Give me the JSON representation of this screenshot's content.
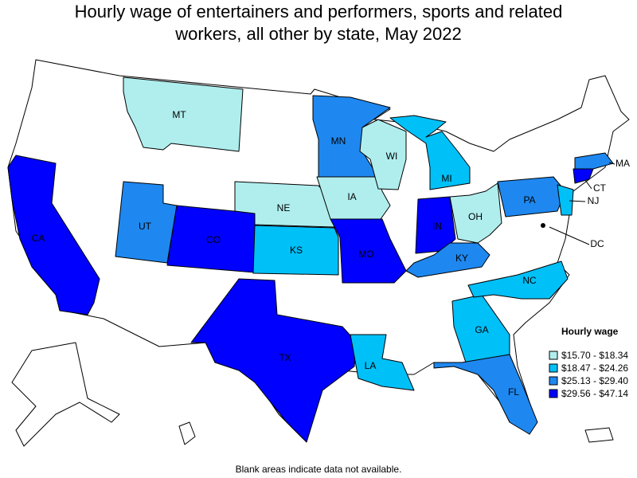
{
  "title": [
    "Hourly wage of entertainers and performers, sports and related",
    "workers, all other by state, May 2022"
  ],
  "legend": {
    "title": "Hourly wage",
    "items": [
      {
        "label": "$15.70 - $18.34",
        "color": "#b0eeee"
      },
      {
        "label": "$18.47 - $24.26",
        "color": "#00c0f8"
      },
      {
        "label": "$25.13 - $29.40",
        "color": "#1e88f0"
      },
      {
        "label": "$29.56 - $47.14",
        "color": "#0000ff"
      }
    ]
  },
  "states": [
    {
      "label": "CA",
      "color": "#0000ff"
    },
    {
      "label": "MT",
      "color": "#b0eeee"
    },
    {
      "label": "UT",
      "color": "#1e88f0"
    },
    {
      "label": "CO",
      "color": "#0000ff"
    },
    {
      "label": "NE",
      "color": "#b0eeee"
    },
    {
      "label": "KS",
      "color": "#00c0f8"
    },
    {
      "label": "IA",
      "color": "#b0eeee"
    },
    {
      "label": "MN",
      "color": "#1e88f0"
    },
    {
      "label": "WI",
      "color": "#b0eeee"
    },
    {
      "label": "MI",
      "color": "#00c0f8"
    },
    {
      "label": "IN",
      "color": "#0000ff"
    },
    {
      "label": "OH",
      "color": "#b0eeee"
    },
    {
      "label": "KY",
      "color": "#1e88f0"
    },
    {
      "label": "MO",
      "color": "#0000ff"
    },
    {
      "label": "TX",
      "color": "#0000ff"
    },
    {
      "label": "LA",
      "color": "#00c0f8"
    },
    {
      "label": "GA",
      "color": "#00c0f8"
    },
    {
      "label": "FL",
      "color": "#1e88f0"
    },
    {
      "label": "NC",
      "color": "#00c0f8"
    },
    {
      "label": "PA",
      "color": "#1e88f0"
    },
    {
      "label": "NJ",
      "color": "#00c0f8"
    },
    {
      "label": "CT",
      "color": "#0000ff"
    },
    {
      "label": "MA",
      "color": "#1e88f0"
    },
    {
      "label": "DC",
      "color": "#000000"
    }
  ],
  "footnote": "Blank areas indicate data not available."
}
